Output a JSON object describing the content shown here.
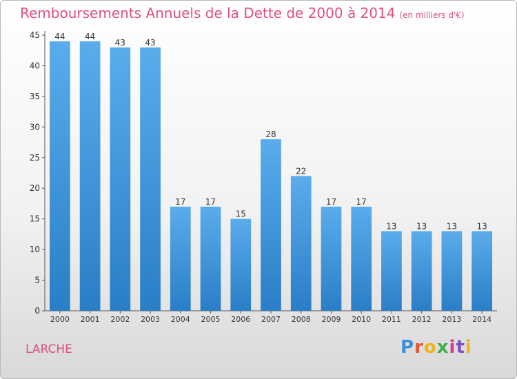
{
  "title": "Remboursements Annuels de la Dette de 2000 à 2014",
  "unit": "(en milliers d'€)",
  "commune": "LARCHE",
  "logo": {
    "p": "P",
    "r": "r",
    "o": "o",
    "x": "x",
    "i": "i",
    "t": "t",
    "i2": "i"
  },
  "colors": {
    "bar_top": "#5aaceb",
    "bar_bottom": "#2a7ec6",
    "title": "#e0507e",
    "axis": "#555555"
  },
  "chart_data": {
    "type": "bar",
    "categories": [
      "2000",
      "2001",
      "2002",
      "2003",
      "2004",
      "2005",
      "2006",
      "2007",
      "2008",
      "2009",
      "2010",
      "2011",
      "2012",
      "2013",
      "2014"
    ],
    "values": [
      44,
      44,
      43,
      43,
      17,
      17,
      15,
      28,
      22,
      17,
      17,
      13,
      13,
      13,
      13
    ],
    "yticks": [
      0,
      5,
      10,
      15,
      20,
      25,
      30,
      35,
      40,
      45
    ],
    "ylim": [
      0,
      45
    ],
    "grid": false,
    "data_labels": true
  }
}
